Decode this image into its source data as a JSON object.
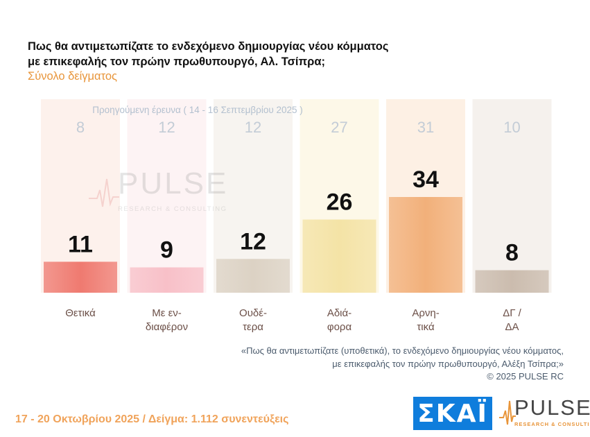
{
  "title_line1": "Πως θα αντιμετωπίζατε το ενδεχόμενο δημιουργίας νέου κόμματος",
  "title_line2": "με επικεφαλής τον πρώην πρωθυπουργό, Αλ. Τσίπρα;",
  "subtitle": "Σύνολο δείγματος",
  "previous_survey_label": "Προηγούμενη έρευνα ( 14 - 16 Σεπτεμβρίου 2025 )",
  "note_line1": "«Πως θα αντιμετωπίζατε (υποθετικά), το ενδεχόμενο δημιουργίας νέου κόμματος,",
  "note_line2": "με επικεφαλής τον πρώην πρωθυπουργό, Αλέξη Τσίπρα;»",
  "copyright": "©  2025  PULSE RC",
  "footer": "17 - 20 Οκτωβρίου 2025  /  Δείγμα:  1.112 συνεντεύξεις",
  "logos": {
    "skai": "ΣΚΑΪ",
    "pulse_word": "PULSE",
    "pulse_sub": "RESEARCH & CONSULTING"
  },
  "chart_data": {
    "type": "bar",
    "categories": [
      [
        "Θετικά"
      ],
      [
        "Με εν-",
        "διαφέρον"
      ],
      [
        "Ουδέ-",
        "τερα"
      ],
      [
        "Αδιά-",
        "φορα"
      ],
      [
        "Αρνη-",
        "τικά"
      ],
      [
        "ΔΓ /",
        "ΔΑ"
      ]
    ],
    "values": [
      11,
      9,
      12,
      26,
      34,
      8
    ],
    "previous_values": [
      8,
      12,
      12,
      27,
      31,
      10
    ],
    "ylim": [
      0,
      40
    ],
    "colors": [
      "#ef7a70",
      "#f8c0c8",
      "#dcd2c4",
      "#f4e3a6",
      "#f2b07a",
      "#cbbcae"
    ],
    "column_bg": [
      "#fdf1ec",
      "#fdf3f4",
      "#f7f4f0",
      "#fdf8e8",
      "#fdf0e4",
      "#f5f1ed"
    ]
  }
}
